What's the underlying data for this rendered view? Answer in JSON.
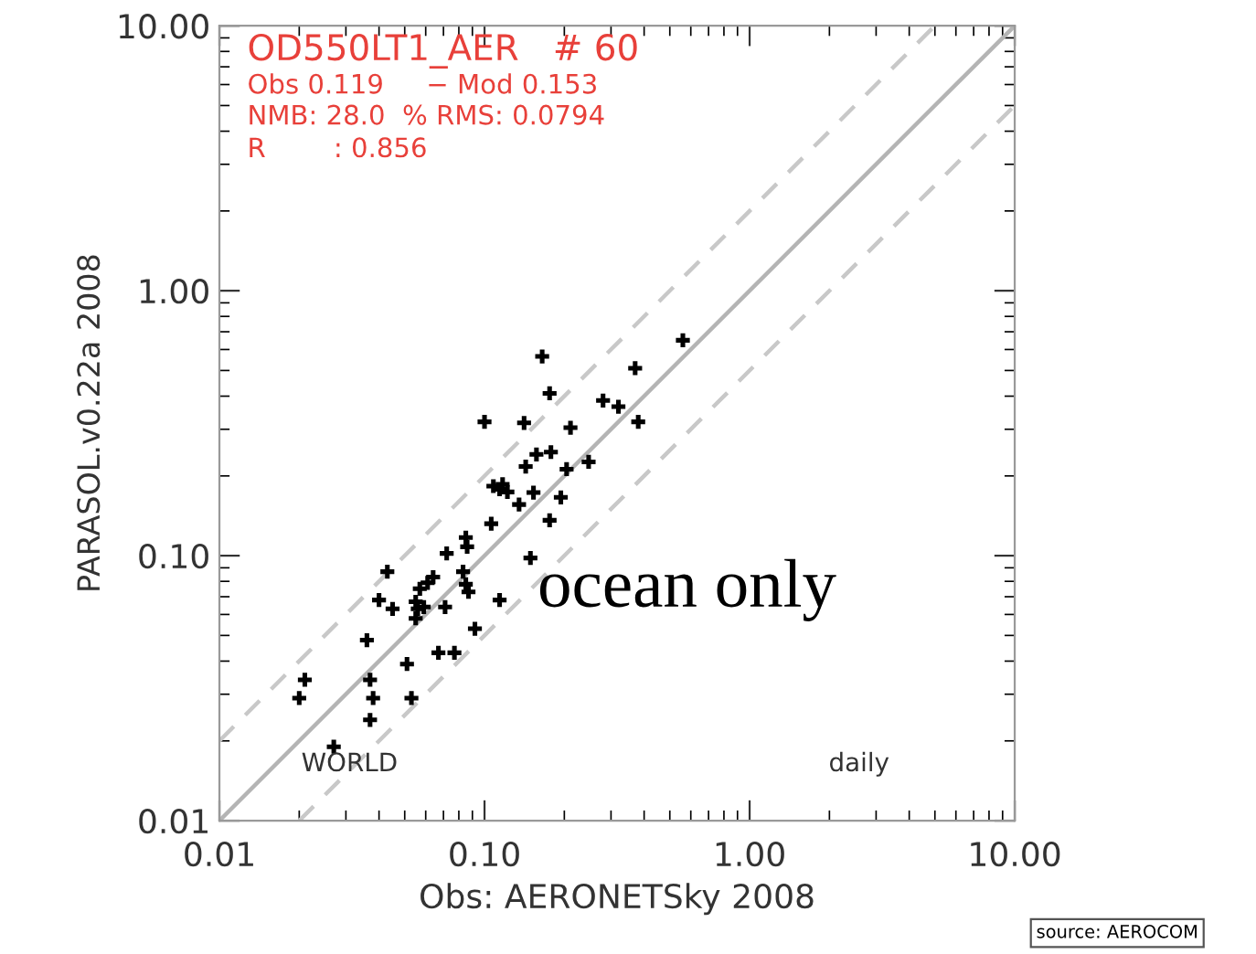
{
  "chart_data": {
    "type": "scatter",
    "xlabel": "Obs: AERONETSky 2008",
    "ylabel": "PARASOL.v0.22a 2008",
    "log": "xy",
    "grid": false,
    "marker": "cross",
    "xlim": [
      0.01,
      10
    ],
    "ylim": [
      0.01,
      10
    ],
    "xticks": [
      {
        "value": 0.01,
        "label": "0.01"
      },
      {
        "value": 0.1,
        "label": "0.10"
      },
      {
        "value": 1,
        "label": "1.00"
      },
      {
        "value": 10,
        "label": "10.00"
      }
    ],
    "yticks": [
      {
        "value": 0.01,
        "label": "0.01"
      },
      {
        "value": 0.1,
        "label": "0.10"
      },
      {
        "value": 1,
        "label": "1.00"
      },
      {
        "value": 10,
        "label": "10.00"
      }
    ],
    "annotations": [
      "OD550LT1_AER   # 60",
      "Obs 0.119     − Mod 0.153",
      "NMB: 28.0  % RMS: 0.0794",
      "R        : 0.856",
      "WORLD",
      "daily",
      "ocean only",
      "source: AEROCOM"
    ],
    "series": [
      {
        "type": "line",
        "marker": "none",
        "color": "#b4b4b4",
        "line_style": "solid",
        "x": [
          0.01,
          10
        ],
        "values": [
          0.01,
          10
        ]
      },
      {
        "type": "line",
        "marker": "none",
        "color": "#c8c8c8",
        "line_style": "dashed",
        "x": [
          0.01,
          5
        ],
        "values": [
          0.02,
          10
        ]
      },
      {
        "type": "line",
        "marker": "none",
        "color": "#c8c8c8",
        "line_style": "dashed",
        "x": [
          0.02,
          10
        ],
        "values": [
          0.01,
          5
        ]
      },
      {
        "color": "#000000",
        "x": [
          0.56,
          0.165,
          0.37,
          0.176,
          0.28,
          0.32,
          0.38,
          0.1,
          0.141,
          0.211,
          0.157,
          0.178,
          0.143,
          0.247,
          0.204,
          0.108,
          0.117,
          0.114,
          0.122,
          0.153,
          0.135,
          0.194,
          0.176,
          0.106,
          0.085,
          0.086,
          0.072,
          0.149,
          0.043,
          0.083,
          0.064,
          0.061,
          0.057,
          0.085,
          0.087,
          0.04,
          0.045,
          0.055,
          0.056,
          0.059,
          0.055,
          0.071,
          0.114,
          0.092,
          0.036,
          0.067,
          0.077,
          0.051,
          0.021,
          0.037,
          0.02,
          0.038,
          0.053,
          0.037,
          0.027
        ],
        "values": [
          0.65,
          0.565,
          0.51,
          0.41,
          0.385,
          0.365,
          0.32,
          0.32,
          0.317,
          0.304,
          0.241,
          0.246,
          0.217,
          0.226,
          0.212,
          0.183,
          0.186,
          0.178,
          0.174,
          0.173,
          0.156,
          0.166,
          0.136,
          0.132,
          0.117,
          0.108,
          0.102,
          0.098,
          0.087,
          0.087,
          0.083,
          0.079,
          0.075,
          0.078,
          0.073,
          0.068,
          0.063,
          0.067,
          0.063,
          0.064,
          0.058,
          0.064,
          0.068,
          0.053,
          0.048,
          0.043,
          0.043,
          0.039,
          0.034,
          0.034,
          0.029,
          0.029,
          0.029,
          0.024,
          0.019
        ]
      }
    ]
  }
}
